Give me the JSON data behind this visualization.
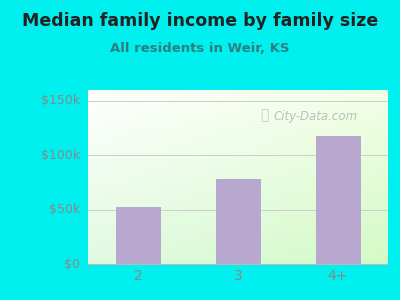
{
  "title": "Median family income by family size",
  "subtitle": "All residents in Weir, KS",
  "categories": [
    "2",
    "3",
    "4+"
  ],
  "values": [
    52000,
    78000,
    118000
  ],
  "bar_color": "#b8a8d0",
  "background_color": "#00EFEF",
  "plot_bg_color_topleft": "#f0faf0",
  "plot_bg_color_bottomright": "#d8f5d8",
  "plot_bg_top": "#e8f8e8",
  "plot_bg_bottom": "#ffffff",
  "title_color": "#222222",
  "subtitle_color": "#2a8080",
  "ytick_labels": [
    "$0",
    "$50k",
    "$100k",
    "$150k"
  ],
  "ytick_values": [
    0,
    50000,
    100000,
    150000
  ],
  "ylim": [
    0,
    160000
  ],
  "watermark": "City-Data.com",
  "axis_line_color": "#bbbbbb",
  "grid_color": "#cccccc",
  "tick_color": "#888888"
}
